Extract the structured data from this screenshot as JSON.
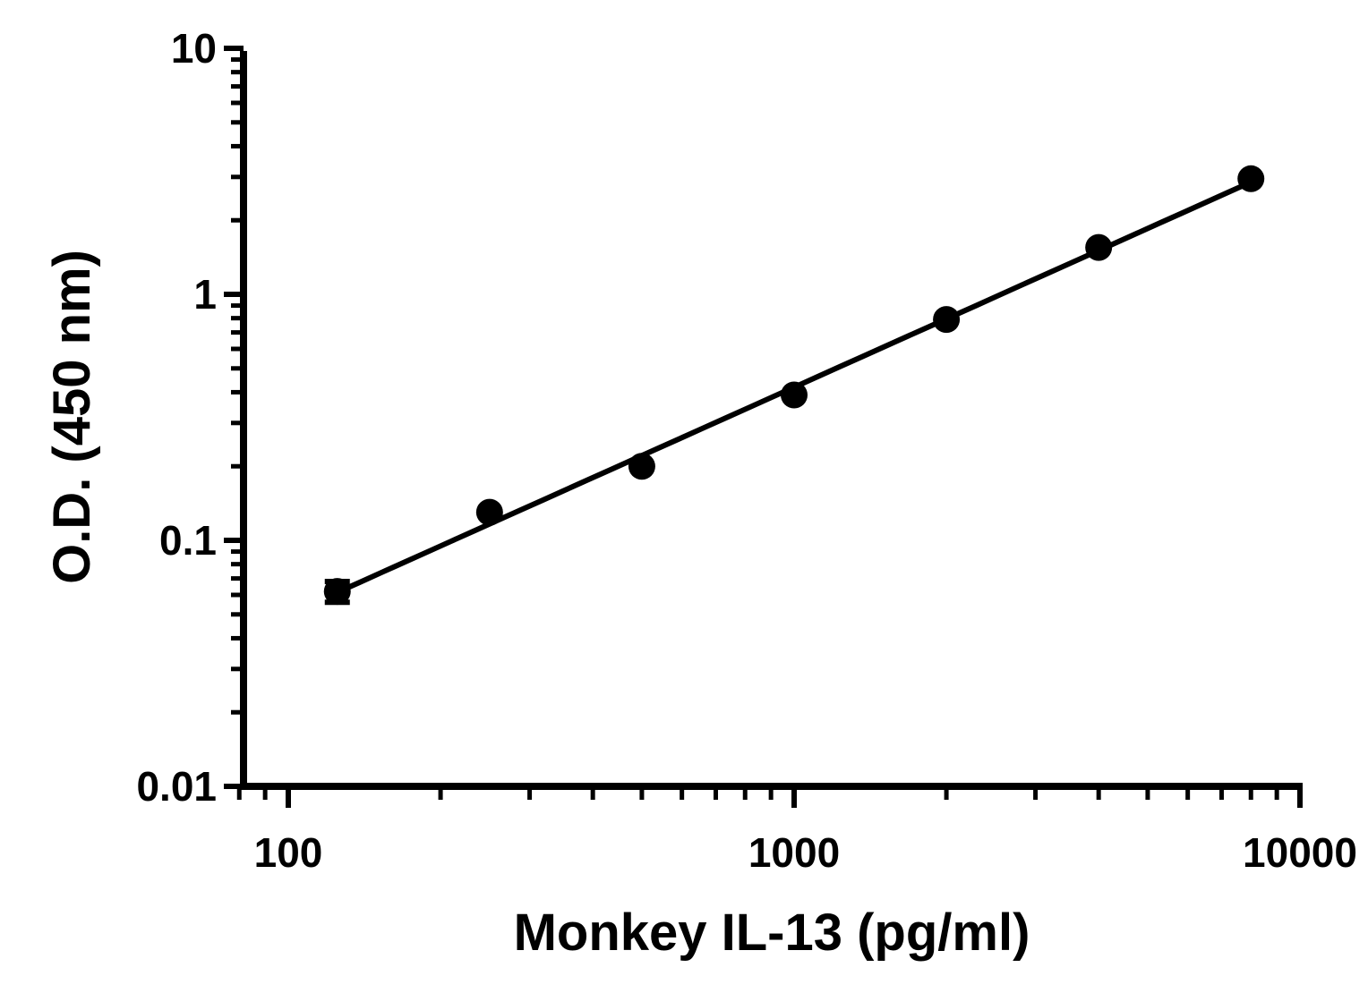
{
  "chart_data": {
    "type": "scatter",
    "xlabel": "Monkey IL-13 (pg/ml)",
    "ylabel": "O.D. (450 nm)",
    "xscale": "log",
    "yscale": "log",
    "xlim": [
      80,
      10000
    ],
    "ylim": [
      0.01,
      10
    ],
    "xticks": [
      {
        "value": 100,
        "label": "100"
      },
      {
        "value": 1000,
        "label": "1000"
      },
      {
        "value": 10000,
        "label": "10000"
      }
    ],
    "yticks": [
      {
        "value": 0.01,
        "label": "0.01"
      },
      {
        "value": 0.1,
        "label": "0.1"
      },
      {
        "value": 1,
        "label": "1"
      },
      {
        "value": 10,
        "label": "10"
      }
    ],
    "grid": false,
    "legend": "none",
    "series": [
      {
        "x": [
          125,
          250,
          500,
          1000,
          2000,
          4000,
          8000
        ],
        "y": [
          0.062,
          0.13,
          0.2,
          0.39,
          0.79,
          1.55,
          2.95
        ],
        "y_err": [
          0.006,
          0,
          0,
          0,
          0,
          0,
          0
        ],
        "fit_line": true,
        "color": "#000000"
      }
    ]
  }
}
